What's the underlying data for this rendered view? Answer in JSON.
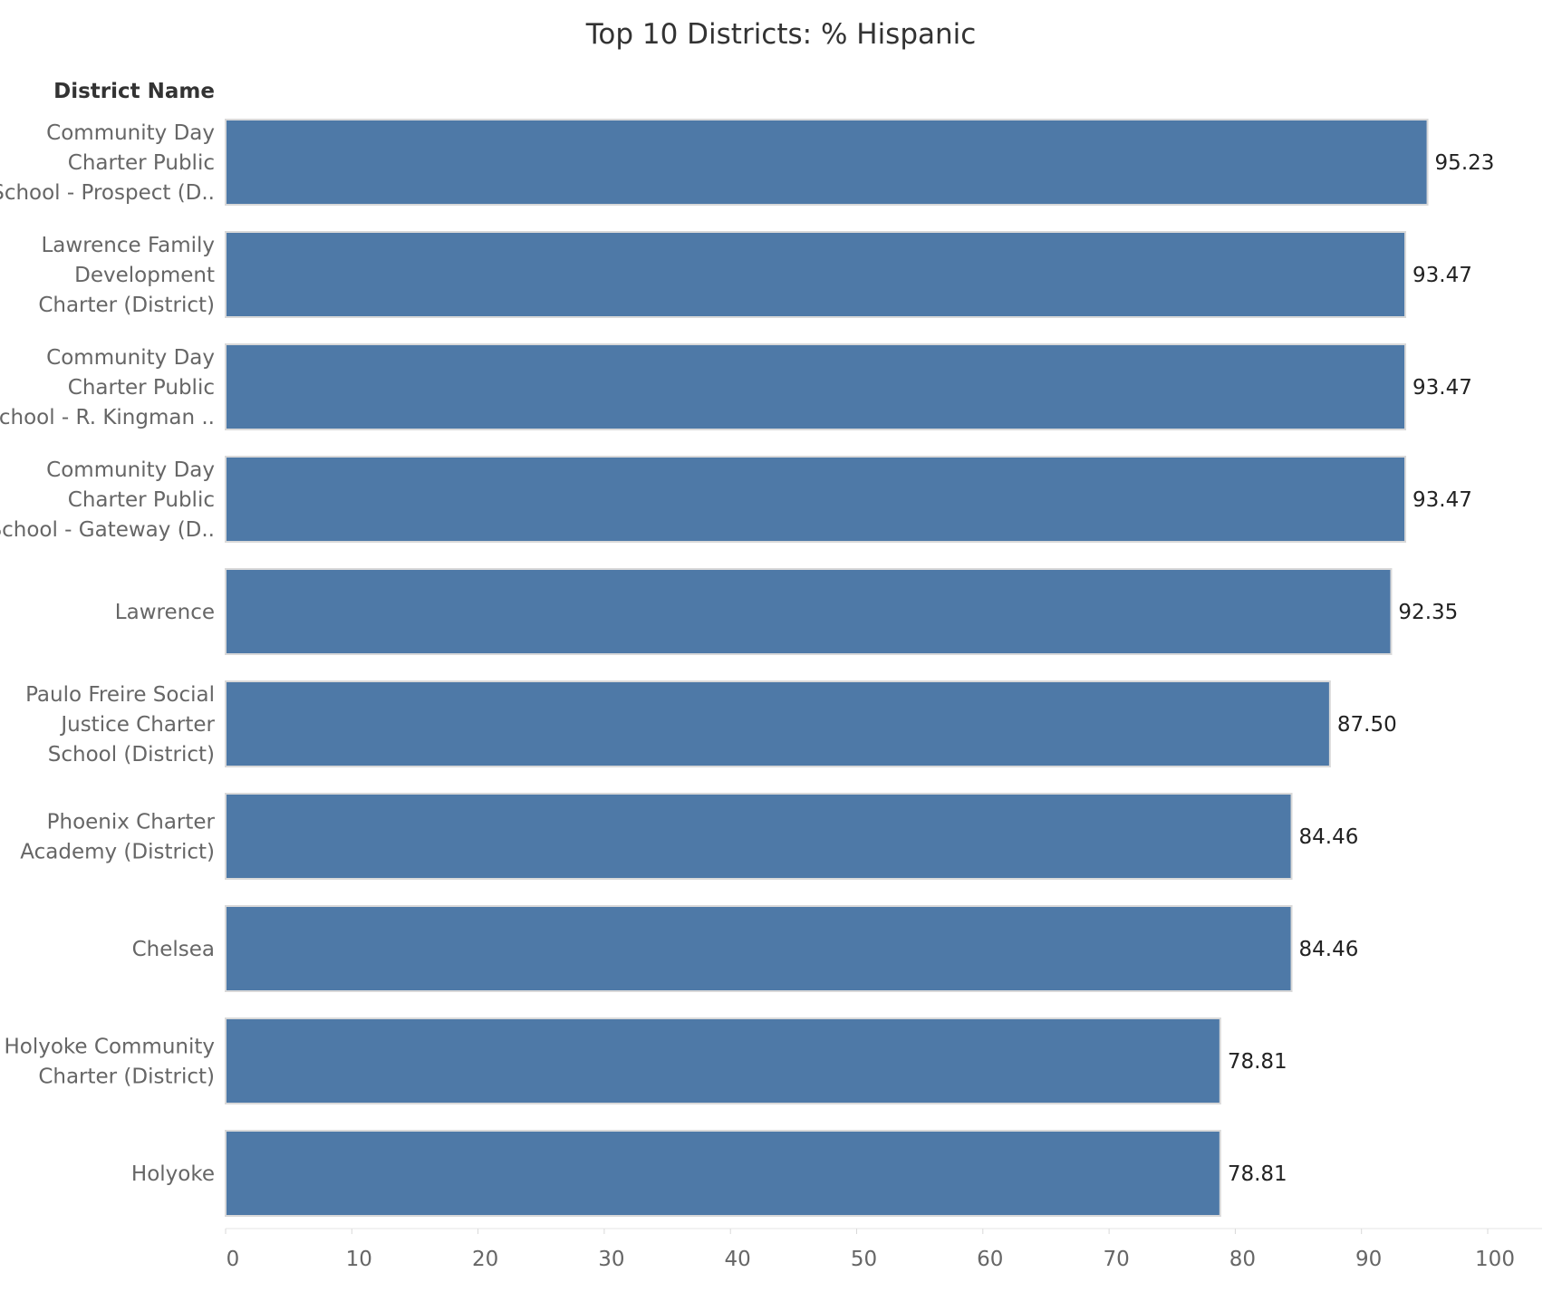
{
  "chart_data": {
    "type": "bar",
    "orientation": "horizontal",
    "title": "Top 10 Districts: % Hispanic",
    "row_header": "District Name",
    "categories": [
      [
        "Community Day",
        "Charter Public",
        "School - Prospect (D.."
      ],
      [
        "Lawrence Family",
        "Development",
        "Charter (District)"
      ],
      [
        "Community Day",
        "Charter Public",
        "School - R. Kingman .."
      ],
      [
        "Community Day",
        "Charter Public",
        "School - Gateway (D.."
      ],
      [
        "Lawrence"
      ],
      [
        "Paulo Freire Social",
        "Justice Charter",
        "School (District)"
      ],
      [
        "Phoenix Charter",
        "Academy (District)"
      ],
      [
        "Chelsea"
      ],
      [
        "Holyoke Community",
        "Charter (District)"
      ],
      [
        "Holyoke"
      ]
    ],
    "values": [
      95.23,
      93.47,
      93.47,
      93.47,
      92.35,
      87.5,
      84.46,
      84.46,
      78.81,
      78.81
    ],
    "value_labels": [
      "95.23",
      "93.47",
      "93.47",
      "93.47",
      "92.35",
      "87.50",
      "84.46",
      "84.46",
      "78.81",
      "78.81"
    ],
    "xlim": [
      0,
      100
    ],
    "xticks": [
      0,
      10,
      20,
      30,
      40,
      50,
      60,
      70,
      80,
      90,
      100
    ],
    "grid": false,
    "colors": {
      "bar": "#4e79a7",
      "bar_border": "#d9d9d9"
    }
  }
}
